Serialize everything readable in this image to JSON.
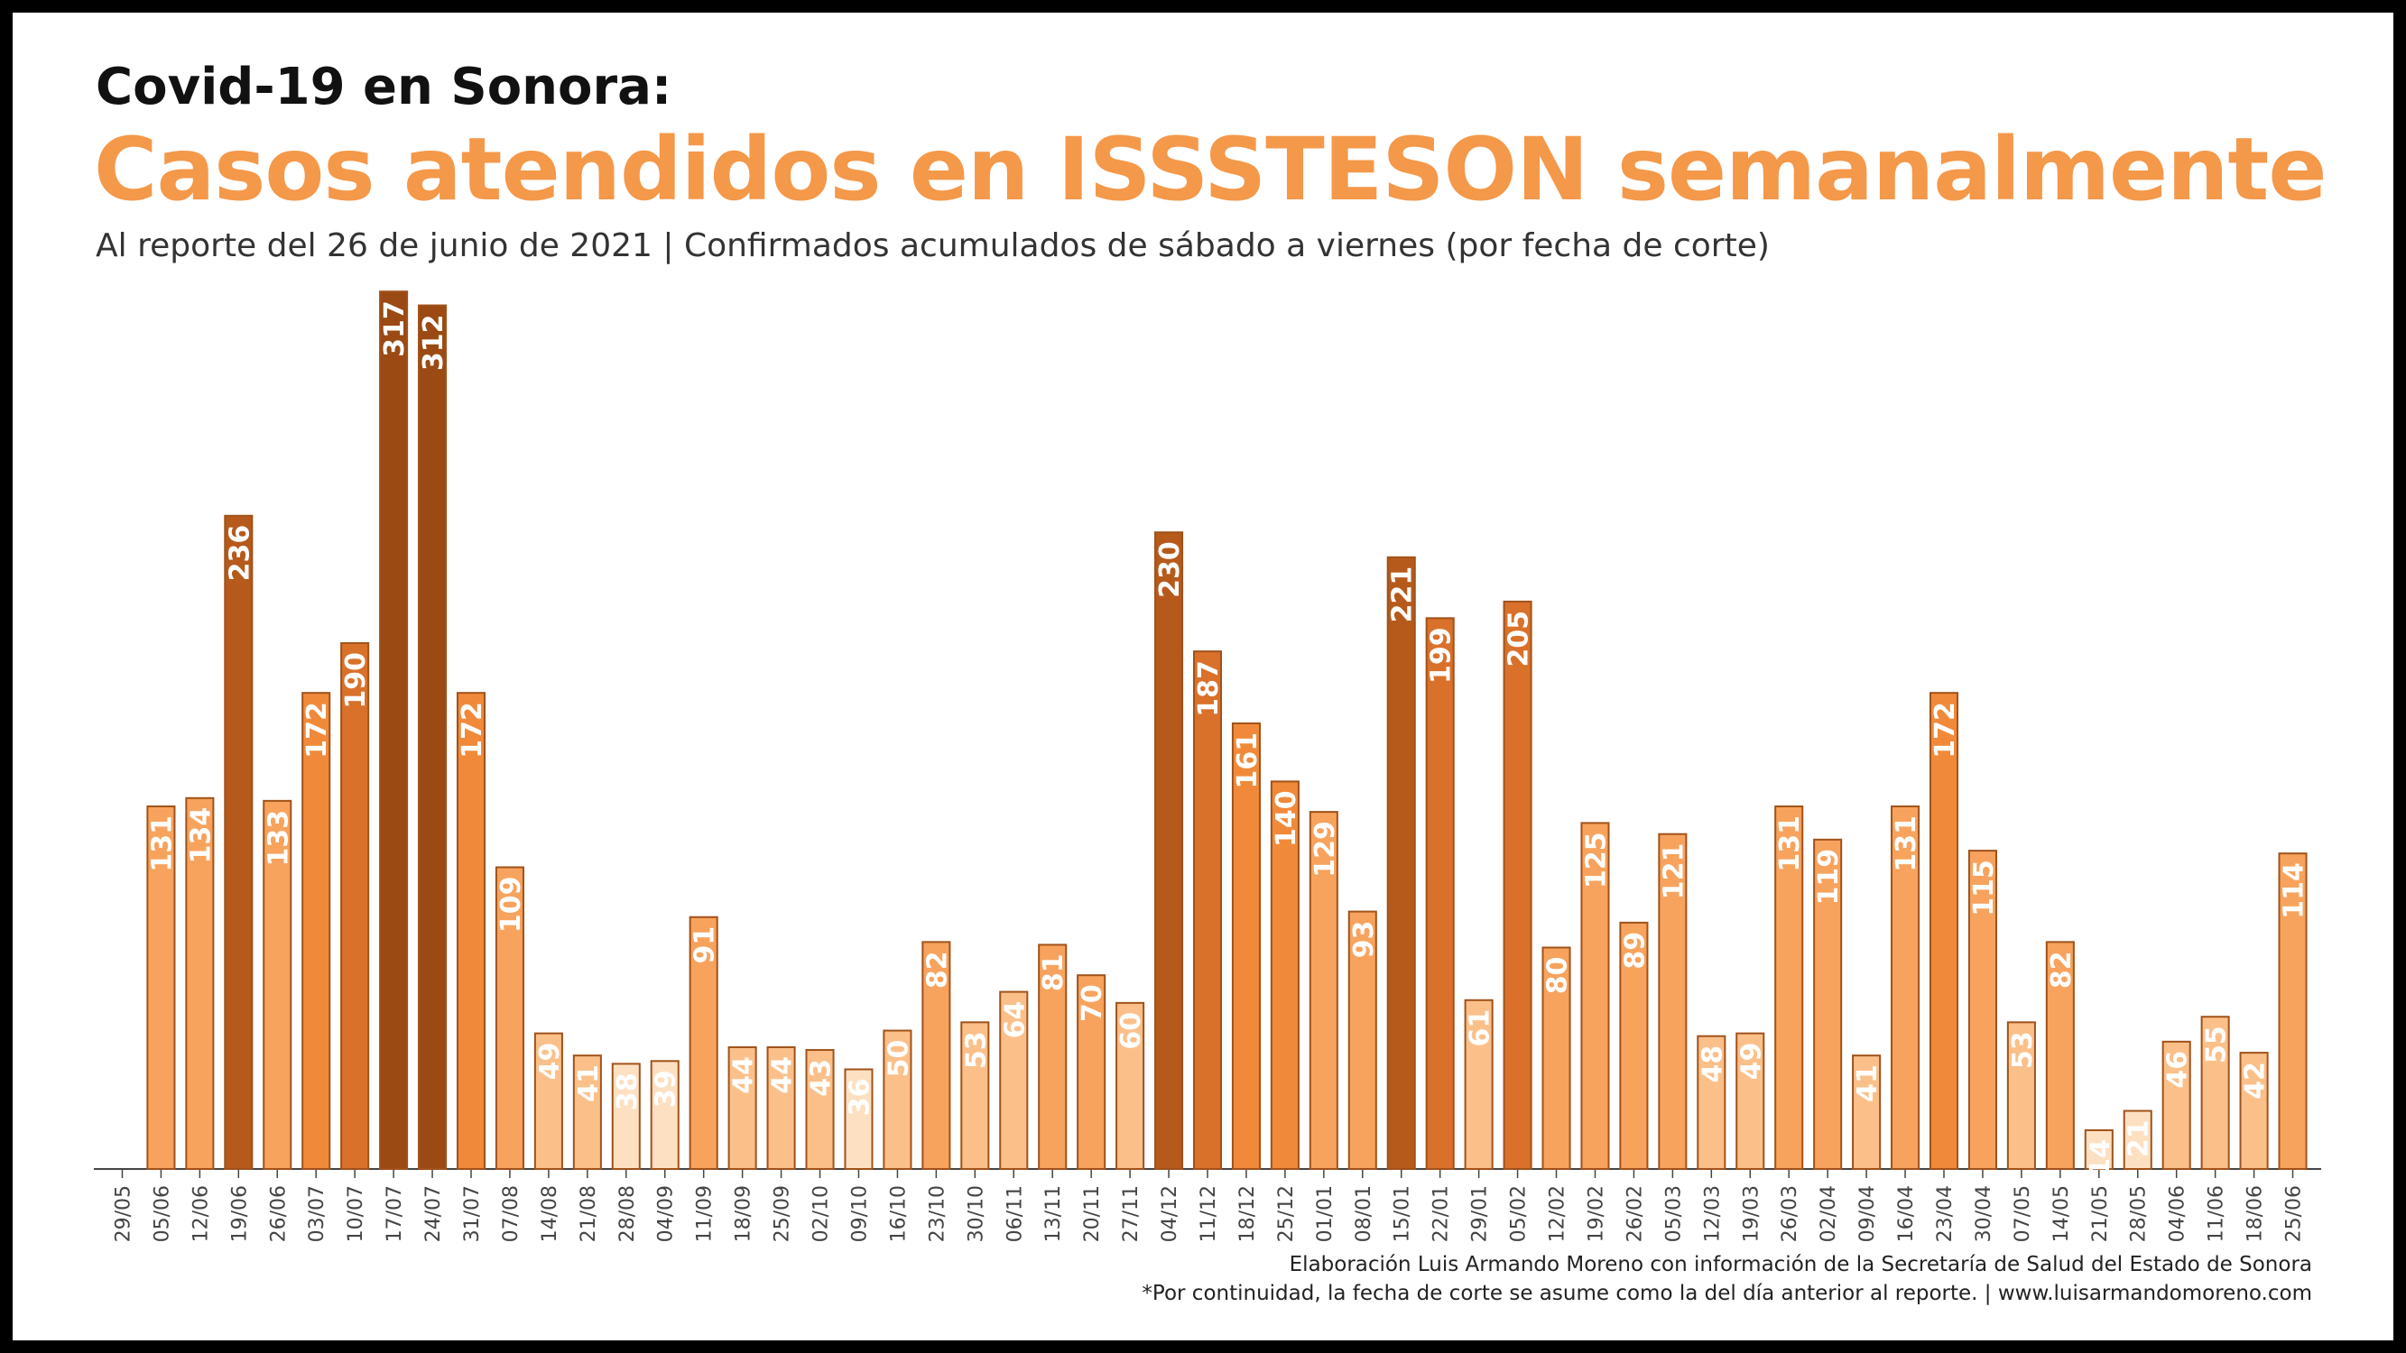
{
  "header": {
    "title": "Covid-19 en Sonora:",
    "headline": "Casos atendidos en ISSSTESON semanalmente",
    "subtitle": "Al reporte del 26 de junio de 2021 | Confirmados acumulados de sábado a viernes (por fecha de corte)"
  },
  "footer": {
    "credit": "Elaboración Luis Armando Moreno con información de la Secretaría de Salud del Estado de Sonora",
    "note": "*Por continuidad, la fecha de corte se asume como la del día anterior al reporte. | www.luisarmandomoreno.com"
  },
  "colors": {
    "accent": "#f4984a",
    "bar_stroke": "#a0521a",
    "scale": [
      "#fde0c2",
      "#fbc08a",
      "#f7a35e",
      "#f08a3a",
      "#d9712b",
      "#b65a1c",
      "#9a4a12"
    ]
  },
  "chart_data": {
    "type": "bar",
    "categories": [
      "29/05",
      "05/06",
      "12/06",
      "19/06",
      "26/06",
      "03/07",
      "10/07",
      "17/07",
      "24/07",
      "31/07",
      "07/08",
      "14/08",
      "21/08",
      "28/08",
      "04/09",
      "11/09",
      "18/09",
      "25/09",
      "02/10",
      "09/10",
      "16/10",
      "23/10",
      "30/10",
      "06/11",
      "13/11",
      "20/11",
      "27/11",
      "04/12",
      "11/12",
      "18/12",
      "25/12",
      "01/01",
      "08/01",
      "15/01",
      "22/01",
      "29/01",
      "05/02",
      "12/02",
      "19/02",
      "26/02",
      "05/03",
      "12/03",
      "19/03",
      "26/03",
      "02/04",
      "09/04",
      "16/04",
      "23/04",
      "30/04",
      "07/05",
      "14/05",
      "21/05",
      "28/05",
      "04/06",
      "11/06",
      "18/06",
      "25/06"
    ],
    "values": [
      null,
      131,
      134,
      236,
      133,
      172,
      190,
      317,
      312,
      172,
      109,
      49,
      41,
      38,
      39,
      91,
      44,
      44,
      43,
      36,
      50,
      82,
      53,
      64,
      81,
      70,
      60,
      230,
      187,
      161,
      140,
      129,
      93,
      221,
      199,
      61,
      205,
      80,
      125,
      89,
      121,
      48,
      49,
      131,
      119,
      41,
      131,
      172,
      115,
      53,
      82,
      14,
      21,
      46,
      55,
      42,
      114
    ],
    "ylim": [
      0,
      320
    ],
    "grid": false,
    "legend": "none",
    "data_labels": true
  }
}
